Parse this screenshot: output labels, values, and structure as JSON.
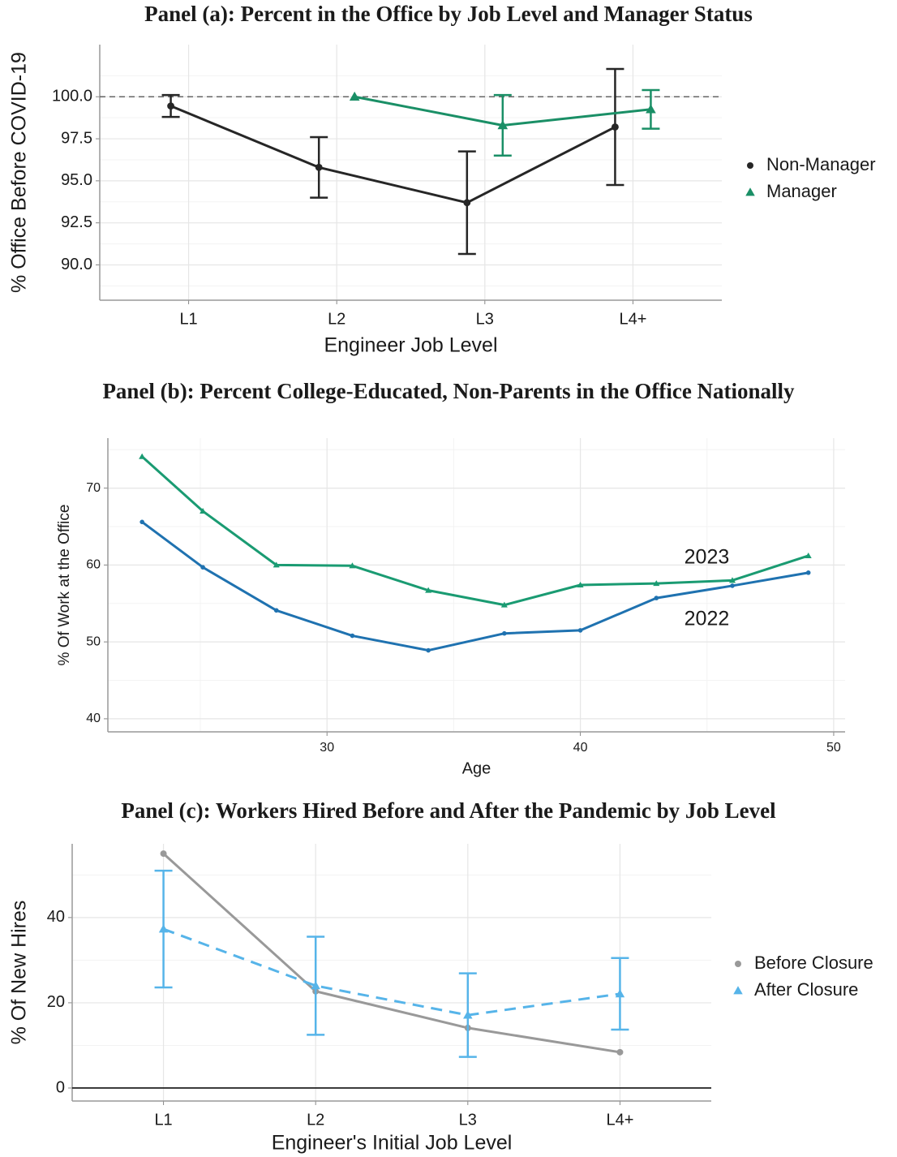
{
  "chart_data": [
    {
      "type": "line",
      "title": "Panel (a): Percent in the Office by Job Level and Manager Status",
      "xlabel": "Engineer Job Level",
      "ylabel": "% Office Before COVID-19",
      "categories": [
        "L1",
        "L2",
        "L3",
        "L4+"
      ],
      "ylim": [
        87.9,
        103.1
      ],
      "yticks": [
        {
          "value": 90,
          "label": "90.0"
        },
        92.5,
        {
          "value": 95,
          "label": "95.0"
        },
        97.5,
        {
          "value": 100,
          "label": "100.0"
        }
      ],
      "grid": true,
      "legend": "right",
      "hline": {
        "value": 100,
        "style": "dashed"
      },
      "series": [
        {
          "name": "Non-Manager",
          "color": "#262626",
          "marker": "circle",
          "style": "solid",
          "values": [
            99.45,
            95.8,
            93.7,
            98.2
          ],
          "errors": [
            0.65,
            1.8,
            3.05,
            3.45
          ]
        },
        {
          "name": "Manager",
          "color": "#1a8f66",
          "marker": "triangle",
          "style": "solid",
          "values": [
            null,
            100.0,
            98.3,
            99.25
          ],
          "errors": [
            null,
            null,
            1.8,
            1.15
          ]
        }
      ]
    },
    {
      "type": "line",
      "title": "Panel (b): Percent College-Educated, Non-Parents in the Office Nationally",
      "xlabel": "Age",
      "ylabel": "% Of Work at the Office",
      "xlim": [
        21.35,
        50.45
      ],
      "xticks": [
        30,
        40,
        50
      ],
      "ylim": [
        38.3,
        76.5
      ],
      "yticks": [
        40,
        50,
        60,
        70
      ],
      "grid": true,
      "x": [
        22.7,
        25.1,
        28,
        31,
        34,
        37,
        40,
        43,
        46,
        49
      ],
      "series": [
        {
          "name": "2022",
          "color": "#1f72b0",
          "marker": "circle",
          "style": "solid",
          "values": [
            65.6,
            59.7,
            54.1,
            50.8,
            48.9,
            51.1,
            51.5,
            55.7,
            57.3,
            59.0
          ]
        },
        {
          "name": "2023",
          "color": "#1a9b72",
          "marker": "triangle",
          "style": "solid",
          "values": [
            74.1,
            67.0,
            60.0,
            59.9,
            56.7,
            54.8,
            57.4,
            57.6,
            58.0,
            61.2
          ]
        }
      ],
      "annotations": [
        {
          "text": "2023",
          "x": 44.1,
          "y": 60.9,
          "color": "#1a9b72"
        },
        {
          "text": "2022",
          "x": 44.1,
          "y": 52.9,
          "color": "#1f72b0"
        }
      ]
    },
    {
      "type": "line",
      "title": "Panel (c): Workers Hired Before and After the Pandemic by Job Level",
      "xlabel": "Engineer's Initial Job Level",
      "ylabel": "% Of New Hires",
      "categories": [
        "L1",
        "L2",
        "L3",
        "L4+"
      ],
      "ylim": [
        -3.05,
        57.3
      ],
      "yticks": [
        0,
        20,
        40
      ],
      "grid": true,
      "legend": "right",
      "hline": {
        "value": 0,
        "style": "solid"
      },
      "series": [
        {
          "name": "Before Closure",
          "color": "#999999",
          "marker": "circle",
          "style": "solid",
          "values": [
            55.0,
            22.7,
            14.1,
            8.4
          ]
        },
        {
          "name": "After Closure",
          "color": "#56b4e9",
          "marker": "triangle",
          "style": "dashed",
          "values": [
            37.3,
            24.0,
            17.1,
            22.1
          ],
          "errors": [
            13.7,
            11.5,
            9.8,
            8.4
          ]
        }
      ]
    }
  ]
}
